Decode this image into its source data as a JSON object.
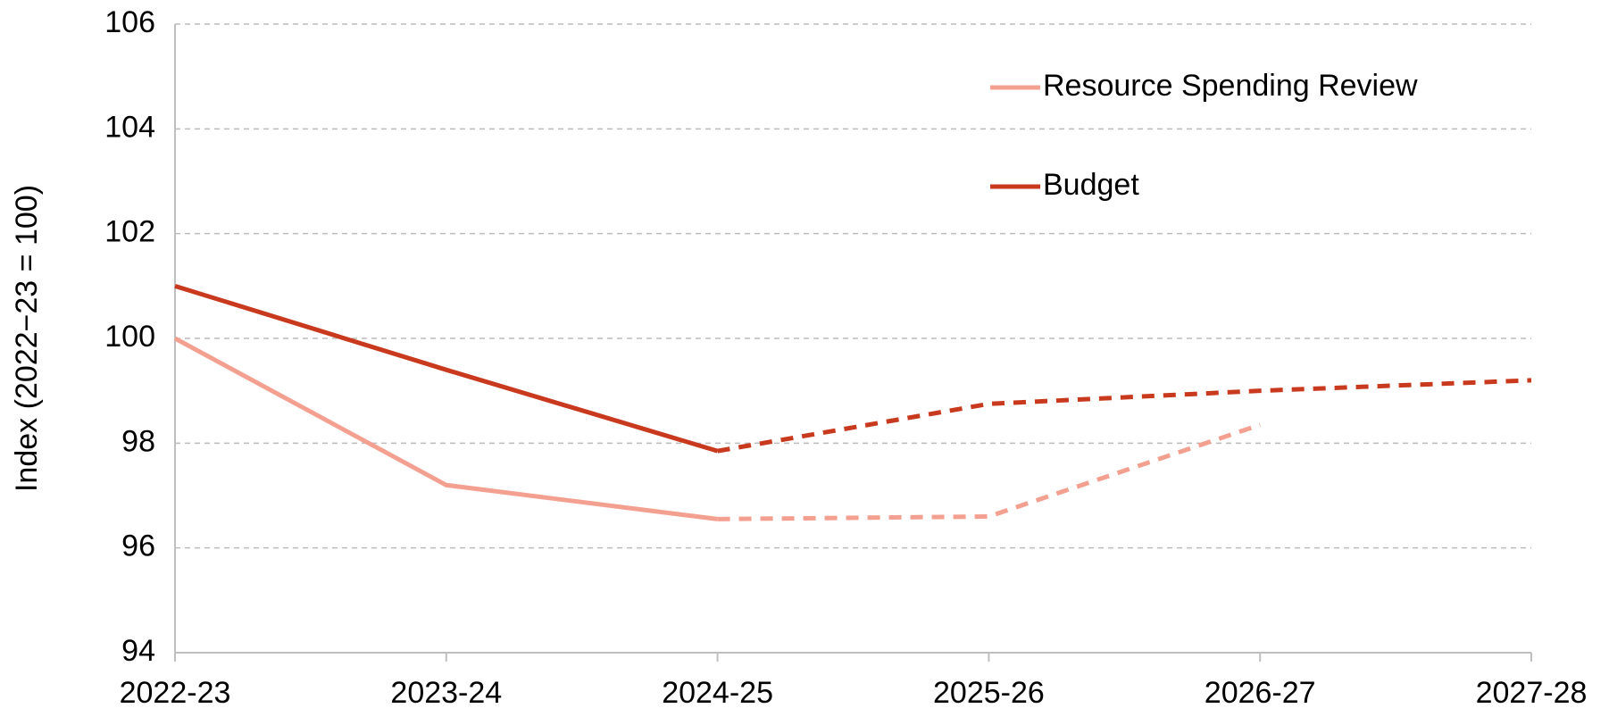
{
  "chart_data": {
    "type": "line",
    "y_label": "Index (2022−23 = 100)",
    "categories": [
      "2022-23",
      "2023-24",
      "2024-25",
      "2025-26",
      "2026-27",
      "2027-28"
    ],
    "series": [
      {
        "name": "Resource Spending Review",
        "color": "#f4a090",
        "values": [
          100,
          97.2,
          96.55,
          96.6,
          98.35,
          null
        ]
      },
      {
        "name": "Budget",
        "color": "#c8391e",
        "values": [
          101,
          99.4,
          97.85,
          98.75,
          99.0,
          99.2
        ]
      }
    ],
    "dash_from": "2024-25",
    "ylim": [
      94,
      106
    ],
    "yticks": [
      94,
      96,
      98,
      100,
      102,
      104,
      106
    ],
    "grid": true,
    "legend": "upper right"
  }
}
